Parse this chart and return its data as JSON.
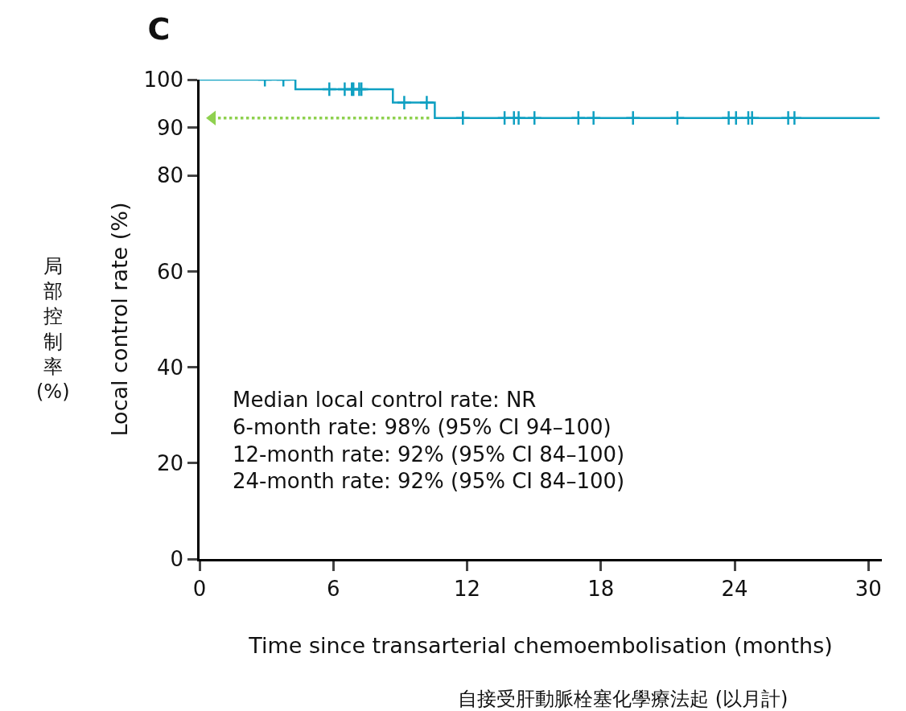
{
  "chart_data": {
    "type": "step",
    "title": "C",
    "xlabel": "Time since transarterial chemoembolisation (months)\n自接受肝動脈栓塞化學療法起 (以月計)",
    "ylabel": "Local control rate (%)",
    "annotations": [
      "局部控制率 (%)",
      "Median local control rate: NR\n6-month rate: 98% (95% CI 94–100)\n12-month rate: 92% (95% CI 84–100)\n24-month rate: 92% (95% CI 84–100)"
    ],
    "xlim": [
      0,
      30.6
    ],
    "xticks": [
      0,
      6,
      12,
      18,
      24,
      30
    ],
    "ylim": [
      0,
      100
    ],
    "yticks": [
      0,
      20,
      40,
      60,
      80,
      90,
      100
    ],
    "grid": false,
    "legend": false,
    "series": [
      {
        "type": "step",
        "color": "#0fa0c2",
        "x": [
          0,
          4.3,
          8.67,
          10.55,
          30.5
        ],
        "values": [
          100,
          98,
          95.2,
          92,
          92
        ]
      },
      {
        "type": "scatter",
        "marker": "cross",
        "color": "#0fa0c2",
        "x": [
          2.93,
          3.76,
          5.82,
          6.51,
          6.83,
          6.9,
          7.16,
          7.26,
          9.18,
          10.19,
          11.81,
          13.68,
          14.1,
          14.31,
          15.02,
          16.99,
          17.67,
          19.44,
          21.43,
          23.73,
          24.06,
          24.61,
          24.78,
          26.4,
          26.68
        ],
        "values": [
          100,
          100,
          98,
          98,
          98,
          98,
          98,
          98,
          95.2,
          95.2,
          92,
          92,
          92,
          92,
          92,
          92,
          92,
          92,
          92,
          92,
          92,
          92,
          92,
          92,
          92
        ]
      },
      {
        "type": "line",
        "line_style": "dotted",
        "marker": "triangle",
        "color": "#8fd14f",
        "x": [
          10.3,
          0.58
        ],
        "values": [
          92,
          92
        ]
      }
    ]
  }
}
